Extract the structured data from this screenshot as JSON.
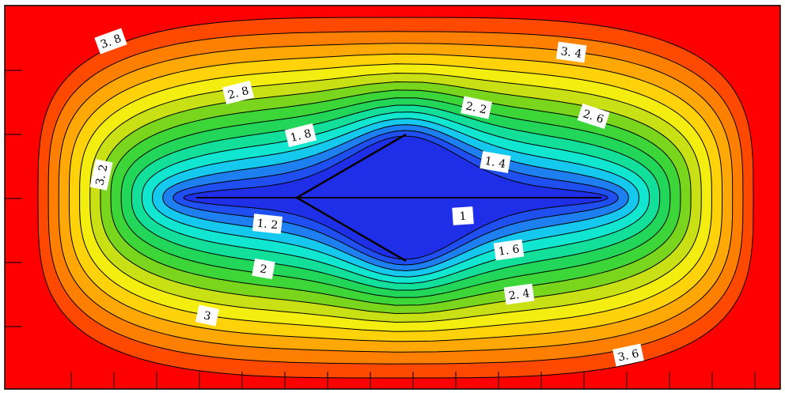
{
  "chart_data": {
    "type": "contour",
    "title": "",
    "xlabel": "",
    "ylabel": "",
    "colormap": [
      "#1f2fe8",
      "#1f4ff0",
      "#1e7ff0",
      "#14c8ee",
      "#10e6d0",
      "#12e09a",
      "#22d65a",
      "#3cd638",
      "#7ad61c",
      "#c8e014",
      "#f3ee10",
      "#ffd20a",
      "#ffa806",
      "#ff7f00",
      "#ff4800",
      "#ff0000"
    ],
    "levels": [
      1.0,
      1.2,
      1.4,
      1.6,
      1.8,
      2.0,
      2.2,
      2.4,
      2.6,
      2.8,
      3.0,
      3.2,
      3.4,
      3.6,
      3.8
    ],
    "contour_labels": [
      {
        "text": "3.8",
        "level": 3.8
      },
      {
        "text": "3.4",
        "level": 3.4
      },
      {
        "text": "2.8",
        "level": 2.8
      },
      {
        "text": "2.2",
        "level": 2.2
      },
      {
        "text": "2.6",
        "level": 2.6
      },
      {
        "text": "1.8",
        "level": 1.8
      },
      {
        "text": "1.4",
        "level": 1.4
      },
      {
        "text": "3.2",
        "level": 3.2
      },
      {
        "text": "1",
        "level": 1.0
      },
      {
        "text": "1.2",
        "level": 1.2
      },
      {
        "text": "1.6",
        "level": 1.6
      },
      {
        "text": "2",
        "level": 2.0
      },
      {
        "text": "2.4",
        "level": 2.4
      },
      {
        "text": "3",
        "level": 3.0
      },
      {
        "text": "3.6",
        "level": 3.6
      }
    ],
    "x_ticks": 18,
    "y_ticks": 5,
    "grid": false,
    "legend": "none"
  }
}
